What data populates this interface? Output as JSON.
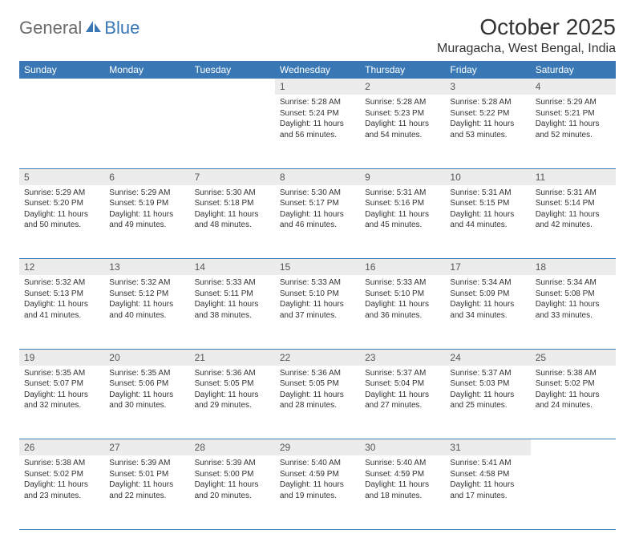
{
  "logo": {
    "general": "General",
    "blue": "Blue"
  },
  "header": {
    "month_title": "October 2025",
    "location": "Muragacha, West Bengal, India"
  },
  "colors": {
    "brand_blue": "#3a78b5",
    "header_text": "#ffffff",
    "daynum_bg": "#ececec",
    "body_text": "#333333",
    "logo_gray": "#6b6b6b"
  },
  "day_headers": [
    "Sunday",
    "Monday",
    "Tuesday",
    "Wednesday",
    "Thursday",
    "Friday",
    "Saturday"
  ],
  "weeks": [
    {
      "days": [
        {
          "num": "",
          "sunrise": "",
          "sunset": "",
          "daylight": "",
          "empty": true
        },
        {
          "num": "",
          "sunrise": "",
          "sunset": "",
          "daylight": "",
          "empty": true
        },
        {
          "num": "",
          "sunrise": "",
          "sunset": "",
          "daylight": "",
          "empty": true
        },
        {
          "num": "1",
          "sunrise": "Sunrise: 5:28 AM",
          "sunset": "Sunset: 5:24 PM",
          "daylight": "Daylight: 11 hours and 56 minutes."
        },
        {
          "num": "2",
          "sunrise": "Sunrise: 5:28 AM",
          "sunset": "Sunset: 5:23 PM",
          "daylight": "Daylight: 11 hours and 54 minutes."
        },
        {
          "num": "3",
          "sunrise": "Sunrise: 5:28 AM",
          "sunset": "Sunset: 5:22 PM",
          "daylight": "Daylight: 11 hours and 53 minutes."
        },
        {
          "num": "4",
          "sunrise": "Sunrise: 5:29 AM",
          "sunset": "Sunset: 5:21 PM",
          "daylight": "Daylight: 11 hours and 52 minutes."
        }
      ]
    },
    {
      "days": [
        {
          "num": "5",
          "sunrise": "Sunrise: 5:29 AM",
          "sunset": "Sunset: 5:20 PM",
          "daylight": "Daylight: 11 hours and 50 minutes."
        },
        {
          "num": "6",
          "sunrise": "Sunrise: 5:29 AM",
          "sunset": "Sunset: 5:19 PM",
          "daylight": "Daylight: 11 hours and 49 minutes."
        },
        {
          "num": "7",
          "sunrise": "Sunrise: 5:30 AM",
          "sunset": "Sunset: 5:18 PM",
          "daylight": "Daylight: 11 hours and 48 minutes."
        },
        {
          "num": "8",
          "sunrise": "Sunrise: 5:30 AM",
          "sunset": "Sunset: 5:17 PM",
          "daylight": "Daylight: 11 hours and 46 minutes."
        },
        {
          "num": "9",
          "sunrise": "Sunrise: 5:31 AM",
          "sunset": "Sunset: 5:16 PM",
          "daylight": "Daylight: 11 hours and 45 minutes."
        },
        {
          "num": "10",
          "sunrise": "Sunrise: 5:31 AM",
          "sunset": "Sunset: 5:15 PM",
          "daylight": "Daylight: 11 hours and 44 minutes."
        },
        {
          "num": "11",
          "sunrise": "Sunrise: 5:31 AM",
          "sunset": "Sunset: 5:14 PM",
          "daylight": "Daylight: 11 hours and 42 minutes."
        }
      ]
    },
    {
      "days": [
        {
          "num": "12",
          "sunrise": "Sunrise: 5:32 AM",
          "sunset": "Sunset: 5:13 PM",
          "daylight": "Daylight: 11 hours and 41 minutes."
        },
        {
          "num": "13",
          "sunrise": "Sunrise: 5:32 AM",
          "sunset": "Sunset: 5:12 PM",
          "daylight": "Daylight: 11 hours and 40 minutes."
        },
        {
          "num": "14",
          "sunrise": "Sunrise: 5:33 AM",
          "sunset": "Sunset: 5:11 PM",
          "daylight": "Daylight: 11 hours and 38 minutes."
        },
        {
          "num": "15",
          "sunrise": "Sunrise: 5:33 AM",
          "sunset": "Sunset: 5:10 PM",
          "daylight": "Daylight: 11 hours and 37 minutes."
        },
        {
          "num": "16",
          "sunrise": "Sunrise: 5:33 AM",
          "sunset": "Sunset: 5:10 PM",
          "daylight": "Daylight: 11 hours and 36 minutes."
        },
        {
          "num": "17",
          "sunrise": "Sunrise: 5:34 AM",
          "sunset": "Sunset: 5:09 PM",
          "daylight": "Daylight: 11 hours and 34 minutes."
        },
        {
          "num": "18",
          "sunrise": "Sunrise: 5:34 AM",
          "sunset": "Sunset: 5:08 PM",
          "daylight": "Daylight: 11 hours and 33 minutes."
        }
      ]
    },
    {
      "days": [
        {
          "num": "19",
          "sunrise": "Sunrise: 5:35 AM",
          "sunset": "Sunset: 5:07 PM",
          "daylight": "Daylight: 11 hours and 32 minutes."
        },
        {
          "num": "20",
          "sunrise": "Sunrise: 5:35 AM",
          "sunset": "Sunset: 5:06 PM",
          "daylight": "Daylight: 11 hours and 30 minutes."
        },
        {
          "num": "21",
          "sunrise": "Sunrise: 5:36 AM",
          "sunset": "Sunset: 5:05 PM",
          "daylight": "Daylight: 11 hours and 29 minutes."
        },
        {
          "num": "22",
          "sunrise": "Sunrise: 5:36 AM",
          "sunset": "Sunset: 5:05 PM",
          "daylight": "Daylight: 11 hours and 28 minutes."
        },
        {
          "num": "23",
          "sunrise": "Sunrise: 5:37 AM",
          "sunset": "Sunset: 5:04 PM",
          "daylight": "Daylight: 11 hours and 27 minutes."
        },
        {
          "num": "24",
          "sunrise": "Sunrise: 5:37 AM",
          "sunset": "Sunset: 5:03 PM",
          "daylight": "Daylight: 11 hours and 25 minutes."
        },
        {
          "num": "25",
          "sunrise": "Sunrise: 5:38 AM",
          "sunset": "Sunset: 5:02 PM",
          "daylight": "Daylight: 11 hours and 24 minutes."
        }
      ]
    },
    {
      "days": [
        {
          "num": "26",
          "sunrise": "Sunrise: 5:38 AM",
          "sunset": "Sunset: 5:02 PM",
          "daylight": "Daylight: 11 hours and 23 minutes."
        },
        {
          "num": "27",
          "sunrise": "Sunrise: 5:39 AM",
          "sunset": "Sunset: 5:01 PM",
          "daylight": "Daylight: 11 hours and 22 minutes."
        },
        {
          "num": "28",
          "sunrise": "Sunrise: 5:39 AM",
          "sunset": "Sunset: 5:00 PM",
          "daylight": "Daylight: 11 hours and 20 minutes."
        },
        {
          "num": "29",
          "sunrise": "Sunrise: 5:40 AM",
          "sunset": "Sunset: 4:59 PM",
          "daylight": "Daylight: 11 hours and 19 minutes."
        },
        {
          "num": "30",
          "sunrise": "Sunrise: 5:40 AM",
          "sunset": "Sunset: 4:59 PM",
          "daylight": "Daylight: 11 hours and 18 minutes."
        },
        {
          "num": "31",
          "sunrise": "Sunrise: 5:41 AM",
          "sunset": "Sunset: 4:58 PM",
          "daylight": "Daylight: 11 hours and 17 minutes."
        },
        {
          "num": "",
          "sunrise": "",
          "sunset": "",
          "daylight": "",
          "empty": true
        }
      ]
    }
  ]
}
